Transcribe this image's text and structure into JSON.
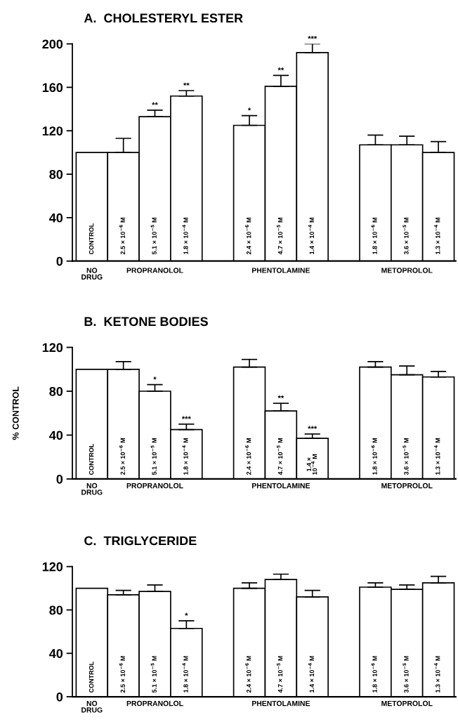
{
  "chart_data": [
    {
      "type": "bar",
      "title": "A.  CHOLESTERYL ESTER",
      "color": "#ffffff",
      "categories": [
        "CONTROL",
        "2.5 × 10$^{−6}$ M",
        "5.1 × 10$^{−5}$ M",
        "1.8 × 10$^{−4}$ M",
        null,
        "2.4 × 10$^{−6}$ M",
        "4.7 × 10$^{−5}$ M",
        "1.4 × 10$^{−4}$ M",
        null,
        "1.8 × 10$^{−6}$ M",
        "3.6 × 10$^{−5}$ M",
        "1.3 × 10$^{−4}$ M"
      ],
      "values": [
        100,
        100,
        133,
        152,
        null,
        125,
        161,
        192,
        null,
        107,
        107,
        100
      ],
      "errors": [
        null,
        13,
        6,
        5,
        null,
        9,
        10,
        8,
        null,
        9,
        8,
        10
      ],
      "value_labels": [
        null,
        null,
        "**",
        "**",
        null,
        "*",
        "**",
        "***",
        null,
        null,
        null,
        null
      ],
      "ylim": [
        0,
        200
      ],
      "yticks": [
        0,
        40,
        80,
        120,
        160,
        200
      ],
      "annotations": [
        "NO\nDRUG",
        "PROPRANOLOL",
        "PHENTOLAMINE",
        "METOPROLOL"
      ]
    },
    {
      "type": "bar",
      "title": "B.  KETONE BODIES",
      "ylabel": "% CONTROL",
      "color": "#ffffff",
      "categories": [
        "CONTROL",
        "2.5 × 10$^{−6}$ M",
        "5.1 × 10$^{−5}$ M",
        "1.8 × 10$^{−4}$ M",
        null,
        "2.4 × 10$^{−6}$ M",
        "4.7 × 10$^{−5}$ M",
        "1.4 ×\n10$^{−4}$ M",
        null,
        "1.8 × 10$^{−6}$ M",
        "3.6 × 10$^{−5}$ M",
        "1.3 × 10$^{−4}$ M"
      ],
      "values": [
        100,
        100,
        80,
        45,
        null,
        102,
        62,
        37,
        null,
        102,
        95,
        93
      ],
      "errors": [
        null,
        7,
        6,
        5,
        null,
        7,
        7,
        4,
        null,
        5,
        8,
        5
      ],
      "value_labels": [
        null,
        null,
        "*",
        "***",
        null,
        null,
        "**",
        "***",
        null,
        null,
        null,
        null
      ],
      "ylim": [
        0,
        120
      ],
      "yticks": [
        0,
        40,
        80,
        120
      ],
      "annotations": [
        "NO\nDRUG",
        "PROPRANOLOL",
        "PHENTOLAMINE",
        "METOPROLOL"
      ]
    },
    {
      "type": "bar",
      "title": "C.  TRIGLYCERIDE",
      "color": "#ffffff",
      "categories": [
        "CONTROL",
        "2.5 × 10$^{−6}$ M",
        "5.1 × 10$^{−5}$ M",
        "1.8 × 10$^{−4}$ M",
        null,
        "2.4 × 10$^{−6}$ M",
        "4.7 × 10$^{−5}$ M",
        "1.4 × 10$^{−4}$ M",
        null,
        "1.8 × 10$^{−6}$ M",
        "3.6 × 10$^{−5}$ M",
        "1.3 × 10$^{−4}$ M"
      ],
      "values": [
        100,
        94,
        97,
        63,
        null,
        100,
        108,
        92,
        null,
        101,
        99,
        105
      ],
      "errors": [
        null,
        4,
        6,
        7,
        null,
        5,
        5,
        6,
        null,
        4,
        4,
        6
      ],
      "value_labels": [
        null,
        null,
        null,
        "*",
        null,
        null,
        null,
        null,
        null,
        null,
        null,
        null
      ],
      "ylim": [
        0,
        120
      ],
      "yticks": [
        0,
        40,
        80,
        120
      ],
      "annotations": [
        "NO\nDRUG",
        "PROPRANOLOL",
        "PHENTOLAMINE",
        "METOPROLOL"
      ]
    }
  ]
}
